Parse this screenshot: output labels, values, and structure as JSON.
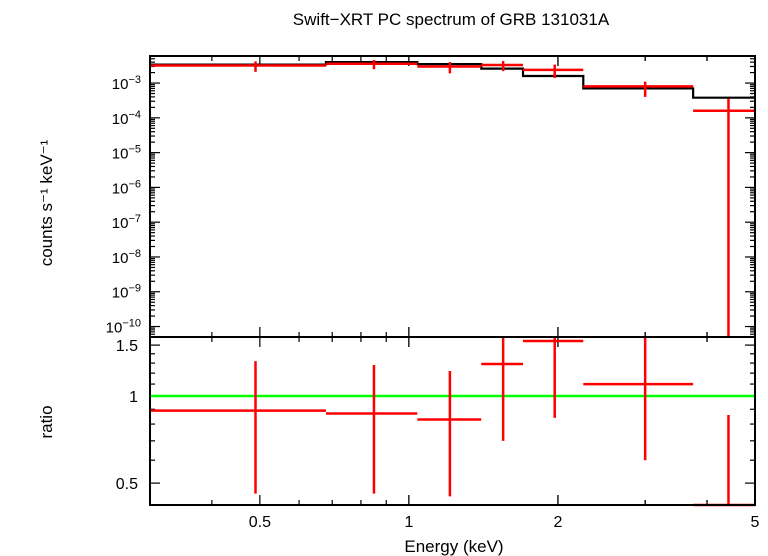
{
  "chart_data": [
    {
      "type": "scatter",
      "panel": "spectrum",
      "title": "Swift−XRT PC spectrum of GRB 131031A",
      "ylabel": "counts s⁻¹ keV⁻¹",
      "xscale": "log",
      "yscale": "log",
      "xlim": [
        0.3,
        5.0
      ],
      "ylim": [
        5e-11,
        0.006
      ],
      "x_ticks": [
        0.5,
        1,
        2,
        5
      ],
      "y_tick_labels": [
        {
          "value": 0.001,
          "mant": "10",
          "exp": "−3"
        },
        {
          "value": 0.0001,
          "mant": "10",
          "exp": "−4"
        },
        {
          "value": 1e-05,
          "mant": "10",
          "exp": "−5"
        },
        {
          "value": 1e-06,
          "mant": "10",
          "exp": "−6"
        },
        {
          "value": 1e-07,
          "mant": "10",
          "exp": "−7"
        },
        {
          "value": 1e-08,
          "mant": "10",
          "exp": "−8"
        },
        {
          "value": 1e-09,
          "mant": "10",
          "exp": "−9"
        },
        {
          "value": 1e-10,
          "mant": "10",
          "exp": "−10"
        }
      ],
      "data_color": "#ff0000",
      "model_color": "#000000",
      "data": [
        {
          "x": 0.49,
          "xlo": 0.3,
          "xhi": 0.68,
          "y": 0.0032,
          "ylo": 0.0021,
          "yhi": 0.0042
        },
        {
          "x": 0.85,
          "xlo": 0.68,
          "xhi": 1.04,
          "y": 0.0036,
          "ylo": 0.0025,
          "yhi": 0.0046
        },
        {
          "x": 1.21,
          "xlo": 1.04,
          "xhi": 1.4,
          "y": 0.003,
          "ylo": 0.0019,
          "yhi": 0.004
        },
        {
          "x": 1.55,
          "xlo": 1.4,
          "xhi": 1.7,
          "y": 0.0033,
          "ylo": 0.0022,
          "yhi": 0.0043
        },
        {
          "x": 1.97,
          "xlo": 1.7,
          "xhi": 2.25,
          "y": 0.0024,
          "ylo": 0.0014,
          "yhi": 0.0034
        },
        {
          "x": 3.0,
          "xlo": 2.25,
          "xhi": 3.75,
          "y": 0.0008,
          "ylo": 0.0004,
          "yhi": 0.0011
        },
        {
          "x": 4.42,
          "xlo": 3.75,
          "xhi": 5.0,
          "y": 0.00016,
          "ylo": 5e-11,
          "yhi": 0.00036
        }
      ],
      "model": [
        {
          "xlo": 0.3,
          "xhi": 0.68,
          "y": 0.0034
        },
        {
          "xlo": 0.68,
          "xhi": 1.04,
          "y": 0.004
        },
        {
          "xlo": 1.04,
          "xhi": 1.4,
          "y": 0.0035
        },
        {
          "xlo": 1.4,
          "xhi": 1.7,
          "y": 0.0026
        },
        {
          "xlo": 1.7,
          "xhi": 2.25,
          "y": 0.0016
        },
        {
          "xlo": 2.25,
          "xhi": 3.75,
          "y": 0.0007
        },
        {
          "xlo": 3.75,
          "xhi": 5.0,
          "y": 0.00038
        }
      ]
    },
    {
      "type": "scatter",
      "panel": "ratio",
      "xlabel": "Energy (keV)",
      "ylabel": "ratio",
      "xscale": "log",
      "yscale": "log",
      "xlim": [
        0.3,
        5.0
      ],
      "ylim": [
        0.42,
        1.6
      ],
      "y_ticks": [
        0.5,
        1,
        1.5
      ],
      "reference_line": 1,
      "reference_color": "#00ff00",
      "data_color": "#ff0000",
      "data": [
        {
          "x": 0.49,
          "xlo": 0.3,
          "xhi": 0.68,
          "y": 0.89,
          "ylo": 0.46,
          "yhi": 1.32
        },
        {
          "x": 0.85,
          "xlo": 0.68,
          "xhi": 1.04,
          "y": 0.87,
          "ylo": 0.46,
          "yhi": 1.28
        },
        {
          "x": 1.21,
          "xlo": 1.04,
          "xhi": 1.4,
          "y": 0.83,
          "ylo": 0.45,
          "yhi": 1.22
        },
        {
          "x": 1.55,
          "xlo": 1.4,
          "xhi": 1.7,
          "y": 1.29,
          "ylo": 0.7,
          "yhi": 1.6
        },
        {
          "x": 1.97,
          "xlo": 1.7,
          "xhi": 2.25,
          "y": 1.55,
          "ylo": 0.84,
          "yhi": 1.6
        },
        {
          "x": 3.0,
          "xlo": 2.25,
          "xhi": 3.75,
          "y": 1.1,
          "ylo": 0.6,
          "yhi": 1.6
        },
        {
          "x": 4.42,
          "xlo": 3.75,
          "xhi": 5.0,
          "y": 0.42,
          "ylo": 0.42,
          "yhi": 0.86
        }
      ]
    }
  ]
}
